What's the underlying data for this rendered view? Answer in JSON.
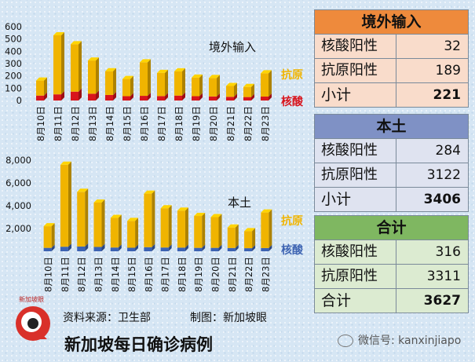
{
  "chart_data": [
    {
      "type": "bar",
      "stacked": true,
      "categories": [
        "8月10日",
        "8月11日",
        "8月12日",
        "8月13日",
        "8月14日",
        "8月15日",
        "8月16日",
        "8月17日",
        "8月18日",
        "8月19日",
        "8月20日",
        "8月21日",
        "8月22日",
        "8月23日"
      ],
      "series": [
        {
          "name": "核酸",
          "color": "#d8141c",
          "values": [
            40,
            50,
            72,
            55,
            45,
            35,
            38,
            36,
            40,
            35,
            33,
            30,
            28,
            32
          ]
        },
        {
          "name": "抗原",
          "color": "#f0b400",
          "values": [
            122,
            480,
            385,
            270,
            193,
            140,
            272,
            188,
            197,
            151,
            150,
            88,
            82,
            189
          ]
        }
      ],
      "title": "境外输入",
      "ylim": [
        0,
        600
      ],
      "yticks": [
        "0",
        "100",
        "200",
        "300",
        "400",
        "500",
        "600"
      ],
      "legend": [
        "抗原",
        "核酸"
      ],
      "legend_position": "right"
    },
    {
      "type": "bar",
      "stacked": true,
      "categories": [
        "8月10日",
        "8月11日",
        "8月12日",
        "8月13日",
        "8月14日",
        "8月15日",
        "8月16日",
        "8月17日",
        "8月18日",
        "8月19日",
        "8月20日",
        "8月21日",
        "8月22日",
        "8月23日"
      ],
      "series": [
        {
          "name": "核酸",
          "color": "#3d63b2",
          "values": [
            300,
            400,
            420,
            380,
            330,
            310,
            360,
            330,
            320,
            300,
            300,
            290,
            270,
            284
          ]
        },
        {
          "name": "抗原",
          "color": "#f0b400",
          "values": [
            1900,
            7200,
            4800,
            3900,
            2600,
            2350,
            4700,
            3450,
            3250,
            2800,
            2700,
            1800,
            1500,
            3122
          ]
        }
      ],
      "title": "本土",
      "ylim": [
        0,
        8000
      ],
      "yticks": [
        "2,000",
        "4,000",
        "6,000",
        "8,000"
      ],
      "legend": [
        "抗原",
        "核酸"
      ],
      "legend_position": "right"
    }
  ],
  "tables": [
    {
      "title": "境外输入",
      "rows": [
        {
          "label": "核酸阳性",
          "value": "32"
        },
        {
          "label": "抗原阳性",
          "value": "189"
        },
        {
          "label": "小计",
          "value": "221"
        }
      ]
    },
    {
      "title": "本土",
      "rows": [
        {
          "label": "核酸阳性",
          "value": "284"
        },
        {
          "label": "抗原阳性",
          "value": "3122"
        },
        {
          "label": "小计",
          "value": "3406"
        }
      ]
    },
    {
      "title": "合计",
      "rows": [
        {
          "label": "核酸阳性",
          "value": "316"
        },
        {
          "label": "抗原阳性",
          "value": "3311"
        },
        {
          "label": "合计",
          "value": "3627"
        }
      ]
    }
  ],
  "source_label": "资料来源：卫生部",
  "credit_label": "制图：新加坡眼",
  "main_title": "新加坡每日确诊病例",
  "wechat_label": "微信号: kanxinjiapo",
  "logo_text": "新加坡眼",
  "logo_icon": "eye-logo-icon"
}
